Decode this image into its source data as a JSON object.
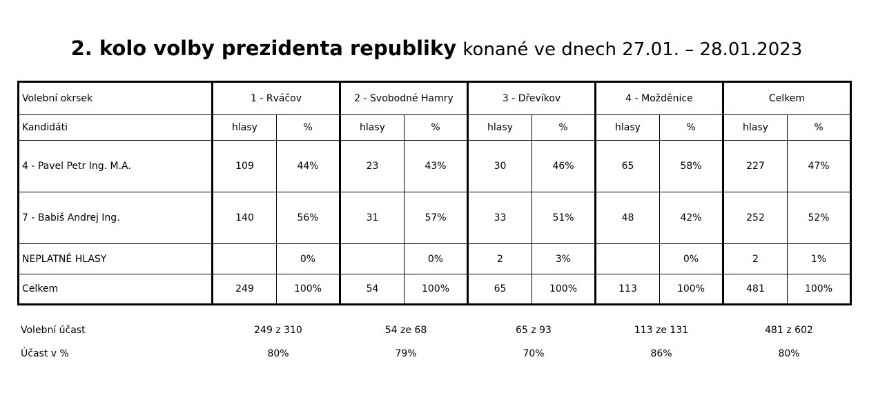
{
  "title": {
    "bold": "2. kolo volby prezidenta republiky",
    "normal": "konané ve dnech 27.01. – 28.01.2023"
  },
  "table": {
    "header_label": "Volební okrsek",
    "districts": [
      "1 - Rváčov",
      "2 - Svobodné Hamry",
      "3 - Dřevíkov",
      "4 - Možděnice",
      "Celkem"
    ],
    "subheader_label": "Kandidáti",
    "col_votes": "hlasy",
    "col_pct": "%",
    "rows": [
      {
        "label": "4 - Pavel Petr Ing. M.A.",
        "cells": [
          "109",
          "44%",
          "23",
          "43%",
          "30",
          "46%",
          "65",
          "58%",
          "227",
          "47%"
        ]
      },
      {
        "label": "7 - Babiš Andrej Ing.",
        "cells": [
          "140",
          "56%",
          "31",
          "57%",
          "33",
          "51%",
          "48",
          "42%",
          "252",
          "52%"
        ]
      },
      {
        "label": "NEPLATNÉ HLASY",
        "cells": [
          "",
          "0%",
          "",
          "0%",
          "2",
          "3%",
          "",
          "0%",
          "2",
          "1%"
        ]
      },
      {
        "label": "Celkem",
        "cells": [
          "249",
          "100%",
          "54",
          "100%",
          "65",
          "100%",
          "113",
          "100%",
          "481",
          "100%"
        ]
      }
    ]
  },
  "turnout": {
    "label": "Volební účast",
    "values": [
      "249  z 310",
      "54  ze 68",
      "65  z 93",
      "113  ze 131",
      "481  z 602"
    ],
    "pct_label": "Účast v %",
    "pct_values": [
      "80%",
      "79%",
      "70%",
      "86%",
      "80%"
    ]
  }
}
